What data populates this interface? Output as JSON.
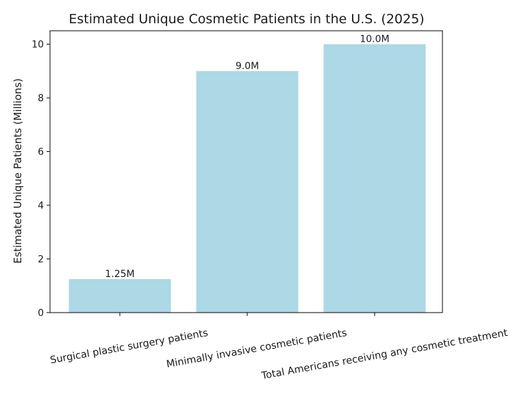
{
  "chart_data": {
    "type": "bar",
    "title": "Estimated Unique Cosmetic Patients in the U.S. (2025)",
    "xlabel": "",
    "ylabel": "Estimated Unique Patients (Millions)",
    "categories": [
      "Surgical plastic surgery patients",
      "Minimally invasive cosmetic patients",
      "Total Americans receiving any cosmetic treatment"
    ],
    "values": [
      1.25,
      9.0,
      10.0
    ],
    "data_labels": [
      "1.25M",
      "9.0M",
      "10.0M"
    ],
    "ylim": [
      0,
      10.5
    ],
    "yticks": [
      0,
      2,
      4,
      6,
      8,
      10
    ],
    "ytick_labels": [
      "0",
      "2",
      "4",
      "6",
      "8",
      "10"
    ],
    "bar_color": "#add8e6",
    "grid": false,
    "legend": "none"
  }
}
